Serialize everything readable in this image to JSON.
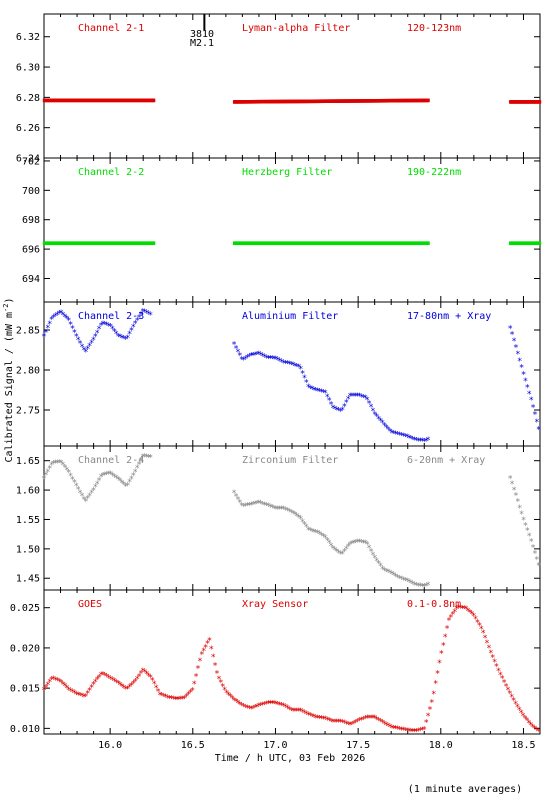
{
  "ylabel": "Calibrated Signal / (mW m",
  "ylabel_sup": "-2",
  "ylabel_close": ")",
  "xlabel": "Time / h UTC, 03 Feb 2026",
  "footnote": "(1 minute averages)",
  "marker": {
    "line1": "3810",
    "line2": "M2.1"
  },
  "chart_data": [
    {
      "type": "scatter",
      "labels": [
        "Channel 2-1",
        "Lyman-alpha Filter",
        "120-123nm"
      ],
      "color": "#dd0000",
      "ylim": [
        6.24,
        6.335
      ],
      "yticks": [
        "6.24",
        "6.26",
        "6.28",
        "6.30",
        "6.32"
      ],
      "xlim": [
        15.6,
        18.6
      ],
      "series": [
        {
          "x": [
            15.6,
            16.27
          ],
          "y": [
            6.278,
            6.278
          ]
        },
        {
          "x": [
            16.75,
            17.93
          ],
          "y": [
            6.277,
            6.278
          ]
        },
        {
          "x": [
            18.42,
            18.6
          ],
          "y": [
            6.277,
            6.277
          ]
        }
      ]
    },
    {
      "type": "scatter",
      "labels": [
        "Channel 2-2",
        "Herzberg Filter",
        "190-222nm"
      ],
      "color": "#00dd00",
      "ylim": [
        692.4,
        702.2
      ],
      "yticks": [
        "694",
        "696",
        "698",
        "700",
        "702"
      ],
      "xlim": [
        15.6,
        18.6
      ],
      "series": [
        {
          "x": [
            15.6,
            16.27
          ],
          "y": [
            696.4,
            696.4
          ]
        },
        {
          "x": [
            16.75,
            17.93
          ],
          "y": [
            696.4,
            696.4
          ]
        },
        {
          "x": [
            18.42,
            18.6
          ],
          "y": [
            696.4,
            696.4
          ]
        }
      ]
    },
    {
      "type": "scatter",
      "labels": [
        "Channel 2-3",
        "Aluminium Filter",
        "17-80nm + Xray"
      ],
      "color": "#0000dd",
      "ylim": [
        2.705,
        2.885
      ],
      "yticks": [
        "2.75",
        "2.80",
        "2.85"
      ],
      "xlim": [
        15.6,
        18.6
      ],
      "series": [
        {
          "x": [
            15.6,
            15.65,
            15.7,
            15.75,
            15.8,
            15.85,
            15.9,
            15.95,
            16.0,
            16.05,
            16.1,
            16.15,
            16.2,
            16.25
          ],
          "y": [
            2.842,
            2.865,
            2.872,
            2.862,
            2.84,
            2.822,
            2.838,
            2.858,
            2.855,
            2.842,
            2.838,
            2.858,
            2.874,
            2.868
          ]
        },
        {
          "x": [
            16.75,
            16.8,
            16.85,
            16.9,
            16.95,
            17.0,
            17.05,
            17.1,
            17.15,
            17.2,
            17.25,
            17.3,
            17.35,
            17.4,
            17.45,
            17.5,
            17.55,
            17.6,
            17.65,
            17.7,
            17.75,
            17.8,
            17.85,
            17.9,
            17.93
          ],
          "y": [
            2.832,
            2.812,
            2.818,
            2.82,
            2.815,
            2.814,
            2.809,
            2.807,
            2.803,
            2.778,
            2.774,
            2.772,
            2.752,
            2.748,
            2.768,
            2.768,
            2.765,
            2.745,
            2.733,
            2.722,
            2.719,
            2.716,
            2.712,
            2.711,
            2.713
          ]
        },
        {
          "x": [
            18.42,
            18.45,
            18.5,
            18.55,
            18.6
          ],
          "y": [
            2.852,
            2.832,
            2.795,
            2.76,
            2.72
          ]
        }
      ]
    },
    {
      "type": "scatter",
      "labels": [
        "Channel 2-4",
        "Zirconium Filter",
        "6-20nm + Xray"
      ],
      "color": "#888888",
      "ylim": [
        1.43,
        1.675
      ],
      "yticks": [
        "1.45",
        "1.50",
        "1.55",
        "1.60",
        "1.65"
      ],
      "xlim": [
        15.6,
        18.6
      ],
      "series": [
        {
          "x": [
            15.6,
            15.65,
            15.7,
            15.75,
            15.8,
            15.85,
            15.9,
            15.95,
            16.0,
            16.05,
            16.1,
            16.15,
            16.2,
            16.25
          ],
          "y": [
            1.62,
            1.645,
            1.648,
            1.63,
            1.605,
            1.58,
            1.6,
            1.625,
            1.628,
            1.618,
            1.605,
            1.63,
            1.658,
            1.655
          ]
        },
        {
          "x": [
            16.75,
            16.8,
            16.85,
            16.9,
            16.95,
            17.0,
            17.05,
            17.1,
            17.15,
            17.2,
            17.25,
            17.3,
            17.35,
            17.4,
            17.45,
            17.5,
            17.55,
            17.6,
            17.65,
            17.7,
            17.75,
            17.8,
            17.85,
            17.9,
            17.93
          ],
          "y": [
            1.595,
            1.572,
            1.575,
            1.578,
            1.574,
            1.568,
            1.568,
            1.562,
            1.552,
            1.532,
            1.528,
            1.52,
            1.5,
            1.49,
            1.508,
            1.512,
            1.51,
            1.485,
            1.465,
            1.458,
            1.45,
            1.445,
            1.438,
            1.436,
            1.44
          ]
        },
        {
          "x": [
            18.42,
            18.45,
            18.5,
            18.55,
            18.6
          ],
          "y": [
            1.62,
            1.595,
            1.55,
            1.51,
            1.465
          ]
        }
      ]
    },
    {
      "type": "scatter",
      "labels": [
        "GOES",
        "Xray Sensor",
        "0.1-0.8nm"
      ],
      "color": "#dd0000",
      "ylim": [
        0.0093,
        0.0272
      ],
      "yticks": [
        "0.010",
        "0.015",
        "0.020",
        "0.025"
      ],
      "xlim": [
        15.6,
        18.6
      ],
      "series": [
        {
          "x": [
            15.6,
            15.65,
            15.7,
            15.75,
            15.8,
            15.85,
            15.9,
            15.95,
            16.0,
            16.05,
            16.1,
            16.15,
            16.2,
            16.25,
            16.3,
            16.35,
            16.4,
            16.45,
            16.5,
            16.55,
            16.6,
            16.65,
            16.7,
            16.75,
            16.8,
            16.85,
            16.9,
            16.95,
            17.0,
            17.05,
            17.1,
            17.15,
            17.2,
            17.25,
            17.3,
            17.35,
            17.4,
            17.45,
            17.5,
            17.55,
            17.6,
            17.65,
            17.7,
            17.75,
            17.8,
            17.85,
            17.9,
            17.95,
            18.0,
            18.05,
            18.1,
            18.15,
            18.2,
            18.25,
            18.3,
            18.35,
            18.4,
            18.45,
            18.5,
            18.55,
            18.6
          ],
          "y": [
            0.0148,
            0.0162,
            0.0158,
            0.0148,
            0.0142,
            0.0139,
            0.0155,
            0.0168,
            0.0162,
            0.0156,
            0.0148,
            0.0158,
            0.0172,
            0.0162,
            0.0142,
            0.0138,
            0.0136,
            0.0137,
            0.0148,
            0.019,
            0.021,
            0.0165,
            0.0145,
            0.0135,
            0.0128,
            0.0124,
            0.0128,
            0.0131,
            0.0131,
            0.0128,
            0.0122,
            0.0122,
            0.0117,
            0.0113,
            0.0112,
            0.0108,
            0.0108,
            0.0104,
            0.0109,
            0.0113,
            0.0113,
            0.0107,
            0.0101,
            0.0099,
            0.0097,
            0.0096,
            0.0099,
            0.0135,
            0.019,
            0.0235,
            0.025,
            0.0249,
            0.024,
            0.0222,
            0.0195,
            0.0171,
            0.015,
            0.0131,
            0.0115,
            0.0103,
            0.0095
          ]
        }
      ]
    }
  ],
  "xticks": [
    "16.0",
    "16.5",
    "17.0",
    "17.5",
    "18.0",
    "18.5"
  ],
  "xtick_values": [
    16.0,
    16.5,
    17.0,
    17.5,
    18.0,
    18.5
  ],
  "marker_x": 16.57
}
